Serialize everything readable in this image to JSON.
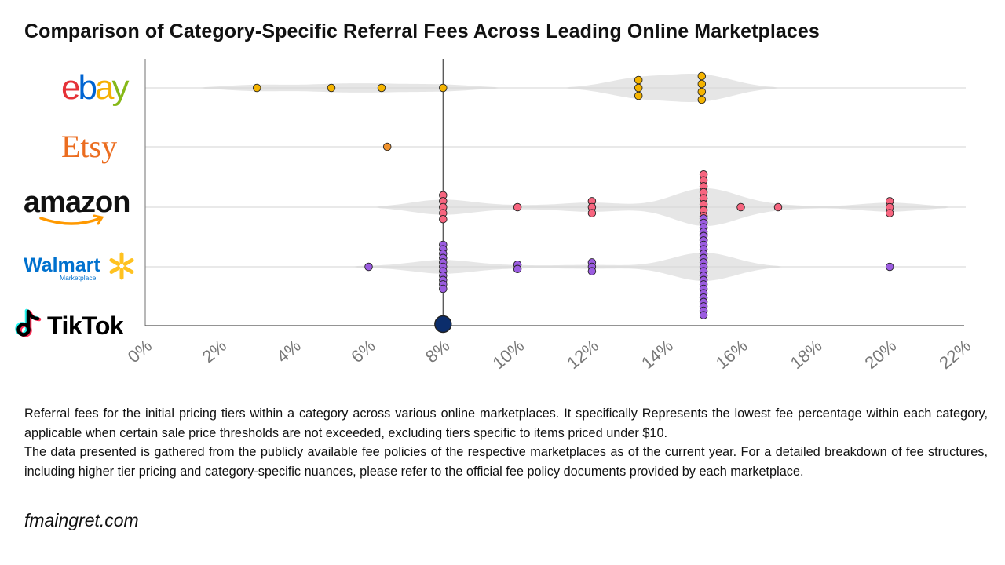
{
  "title": "Comparison of Category-Specific Referral Fees Across Leading Online Marketplaces",
  "description": [
    "Referral fees for the initial pricing tiers within a category across various online marketplaces. It specifically Represents the lowest fee percentage within each category, applicable when certain sale price thresholds are not exceeded, excluding tiers specific to items priced under $10.",
    "The data presented is gathered from the publicly available fee policies of the respective marketplaces as of the current year. For a detailed breakdown of fee structures, including higher tier pricing and category-specific nuances, please refer to the official fee policy documents provided by each marketplace."
  ],
  "website": "fmaingret.com",
  "chart_data": {
    "type": "scatter",
    "title": "Comparison of Category-Specific Referral Fees Across Leading Online Marketplaces",
    "xlabel": "",
    "ylabel": "",
    "xlim": [
      0,
      22
    ],
    "x_tick_labels": [
      "0%",
      "2%",
      "4%",
      "6%",
      "8%",
      "10%",
      "12%",
      "14%",
      "16%",
      "18%",
      "20%",
      "22%"
    ],
    "x_ticks": [
      0,
      2,
      4,
      6,
      8,
      10,
      12,
      14,
      16,
      18,
      20,
      22
    ],
    "reference_line_x": 8,
    "grid": "horizontal",
    "legend": "none",
    "categories": [
      "ebay",
      "Etsy",
      "amazon",
      "Walmart",
      "TikTok"
    ],
    "series": [
      {
        "name": "ebay",
        "logo_text": "ebay",
        "logo_colors": [
          "#e53238",
          "#0064d2",
          "#f5af02",
          "#86b817"
        ],
        "color": "#f5b400",
        "values": [
          {
            "x": 3,
            "n": 1
          },
          {
            "x": 5,
            "n": 1
          },
          {
            "x": 6.35,
            "n": 1
          },
          {
            "x": 8,
            "n": 1
          },
          {
            "x": 13.25,
            "n": 3
          },
          {
            "x": 14.95,
            "n": 4
          }
        ]
      },
      {
        "name": "Etsy",
        "logo_text": "Etsy",
        "logo_color": "#eb6d20",
        "color": "#f0922c",
        "values": [
          {
            "x": 6.5,
            "n": 1
          }
        ]
      },
      {
        "name": "amazon",
        "logo_text": "amazon",
        "logo_color": "#111111",
        "logo_accent": "#ff9900",
        "color": "#f7657f",
        "values": [
          {
            "x": 8,
            "n": 5
          },
          {
            "x": 10,
            "n": 1
          },
          {
            "x": 12,
            "n": 3
          },
          {
            "x": 15,
            "n": 12
          },
          {
            "x": 16,
            "n": 1
          },
          {
            "x": 17,
            "n": 1
          },
          {
            "x": 20,
            "n": 3
          }
        ]
      },
      {
        "name": "Walmart",
        "logo_text": "Walmart",
        "logo_subtext": "Marketplace",
        "logo_color": "#0071ce",
        "logo_accent": "#ffc220",
        "color": "#9b5ce0",
        "values": [
          {
            "x": 6,
            "n": 1
          },
          {
            "x": 8,
            "n": 11
          },
          {
            "x": 10,
            "n": 2
          },
          {
            "x": 12,
            "n": 3
          },
          {
            "x": 15,
            "n": 23
          },
          {
            "x": 20,
            "n": 1
          }
        ]
      },
      {
        "name": "TikTok",
        "logo_text": "TikTok",
        "logo_color": "#000000",
        "logo_accents": [
          "#25f4ee",
          "#fe2c55"
        ],
        "color": "#0b2d6b",
        "values": [
          {
            "x": 8,
            "n": 1
          }
        ]
      }
    ]
  }
}
